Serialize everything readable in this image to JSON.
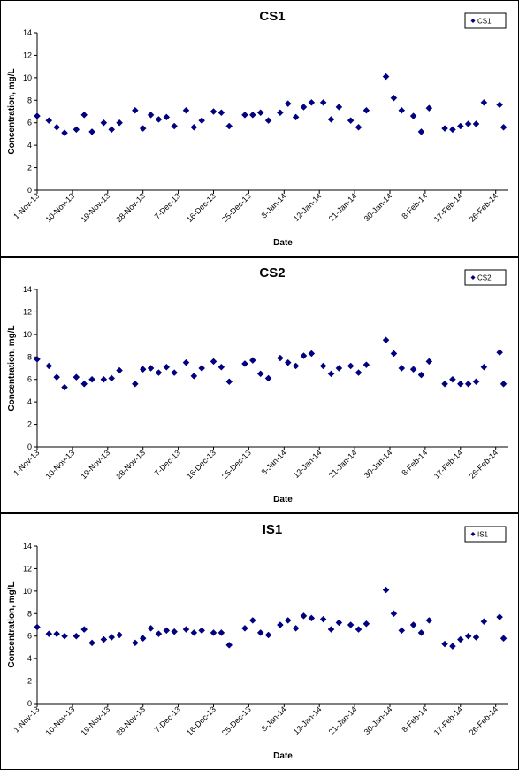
{
  "chart_data": [
    {
      "type": "scatter",
      "title": "CS1",
      "xlabel": "Date",
      "ylabel": "Concentration, mg/L",
      "ylim": [
        0,
        14
      ],
      "yticks": [
        0,
        2,
        4,
        6,
        8,
        10,
        12,
        14
      ],
      "xlim": [
        "2013-11-01",
        "2014-03-01"
      ],
      "xtick_labels": [
        "1-Nov-13",
        "10-Nov-13",
        "19-Nov-13",
        "28-Nov-13",
        "7-Dec-13",
        "16-Dec-13",
        "25-Dec-13",
        "3-Jan-14",
        "12-Jan-14",
        "21-Jan-14",
        "30-Jan-14",
        "8-Feb-14",
        "17-Feb-14",
        "26-Feb-14"
      ],
      "grid": false,
      "legend": {
        "position": "top-right",
        "entries": [
          "CS1"
        ]
      },
      "marker": "diamond",
      "color": "#000080",
      "series": [
        {
          "name": "CS1",
          "x": [
            "2013-11-01",
            "2013-11-04",
            "2013-11-06",
            "2013-11-08",
            "2013-11-11",
            "2013-11-13",
            "2013-11-15",
            "2013-11-18",
            "2013-11-20",
            "2013-11-22",
            "2013-11-26",
            "2013-11-28",
            "2013-11-30",
            "2013-12-02",
            "2013-12-04",
            "2013-12-06",
            "2013-12-09",
            "2013-12-11",
            "2013-12-13",
            "2013-12-16",
            "2013-12-18",
            "2013-12-20",
            "2013-12-24",
            "2013-12-26",
            "2013-12-28",
            "2013-12-30",
            "2014-01-02",
            "2014-01-04",
            "2014-01-06",
            "2014-01-08",
            "2014-01-10",
            "2014-01-13",
            "2014-01-15",
            "2014-01-17",
            "2014-01-20",
            "2014-01-22",
            "2014-01-24",
            "2014-01-29",
            "2014-01-31",
            "2014-02-02",
            "2014-02-05",
            "2014-02-07",
            "2014-02-09",
            "2014-02-13",
            "2014-02-15",
            "2014-02-17",
            "2014-02-19",
            "2014-02-21",
            "2014-02-23",
            "2014-02-27",
            "2014-02-28"
          ],
          "y": [
            6.6,
            6.2,
            5.6,
            5.1,
            5.4,
            6.7,
            5.2,
            6.0,
            5.4,
            6.0,
            7.1,
            5.5,
            6.7,
            6.3,
            6.5,
            5.7,
            7.1,
            5.6,
            6.2,
            7.0,
            6.9,
            5.7,
            6.7,
            6.7,
            6.9,
            6.2,
            6.9,
            7.7,
            6.5,
            7.4,
            7.8,
            7.8,
            6.3,
            7.4,
            6.2,
            5.6,
            7.1,
            10.1,
            8.2,
            7.1,
            6.6,
            5.2,
            7.3,
            5.5,
            5.4,
            5.7,
            5.9,
            5.9,
            7.8,
            7.6,
            5.6
          ]
        }
      ]
    },
    {
      "type": "scatter",
      "title": "CS2",
      "xlabel": "Date",
      "ylabel": "Concentration, mg/L",
      "ylim": [
        0,
        14
      ],
      "yticks": [
        0,
        2,
        4,
        6,
        8,
        10,
        12,
        14
      ],
      "xlim": [
        "2013-11-01",
        "2014-03-01"
      ],
      "xtick_labels": [
        "1-Nov-13",
        "10-Nov-13",
        "19-Nov-13",
        "28-Nov-13",
        "7-Dec-13",
        "16-Dec-13",
        "25-Dec-13",
        "3-Jan-14",
        "12-Jan-14",
        "21-Jan-14",
        "30-Jan-14",
        "8-Feb-14",
        "17-Feb-14",
        "26-Feb-14"
      ],
      "grid": false,
      "legend": {
        "position": "top-right",
        "entries": [
          "CS2"
        ]
      },
      "marker": "diamond",
      "color": "#000080",
      "series": [
        {
          "name": "CS2",
          "x": [
            "2013-11-01",
            "2013-11-04",
            "2013-11-06",
            "2013-11-08",
            "2013-11-11",
            "2013-11-13",
            "2013-11-15",
            "2013-11-18",
            "2013-11-20",
            "2013-11-22",
            "2013-11-26",
            "2013-11-28",
            "2013-11-30",
            "2013-12-02",
            "2013-12-04",
            "2013-12-06",
            "2013-12-09",
            "2013-12-11",
            "2013-12-13",
            "2013-12-16",
            "2013-12-18",
            "2013-12-20",
            "2013-12-24",
            "2013-12-26",
            "2013-12-28",
            "2013-12-30",
            "2014-01-02",
            "2014-01-04",
            "2014-01-06",
            "2014-01-08",
            "2014-01-10",
            "2014-01-13",
            "2014-01-15",
            "2014-01-17",
            "2014-01-20",
            "2014-01-22",
            "2014-01-24",
            "2014-01-29",
            "2014-01-31",
            "2014-02-02",
            "2014-02-05",
            "2014-02-07",
            "2014-02-09",
            "2014-02-13",
            "2014-02-15",
            "2014-02-17",
            "2014-02-19",
            "2014-02-21",
            "2014-02-23",
            "2014-02-27",
            "2014-02-28"
          ],
          "y": [
            7.8,
            7.2,
            6.2,
            5.3,
            6.2,
            5.6,
            6.0,
            6.0,
            6.1,
            6.8,
            5.6,
            6.9,
            7.0,
            6.6,
            7.1,
            6.6,
            7.5,
            6.3,
            7.0,
            7.6,
            7.1,
            5.8,
            7.4,
            7.7,
            6.5,
            6.1,
            7.9,
            7.5,
            7.2,
            8.1,
            8.3,
            7.2,
            6.5,
            7.0,
            7.2,
            6.6,
            7.3,
            9.5,
            8.3,
            7.0,
            6.9,
            6.4,
            7.6,
            5.6,
            6.0,
            5.6,
            5.6,
            5.8,
            7.1,
            8.4,
            5.6
          ]
        }
      ]
    },
    {
      "type": "scatter",
      "title": "IS1",
      "xlabel": "Date",
      "ylabel": "Concentration, mg/L",
      "ylim": [
        0,
        14
      ],
      "yticks": [
        0,
        2,
        4,
        6,
        8,
        10,
        12,
        14
      ],
      "xlim": [
        "2013-11-01",
        "2014-03-01"
      ],
      "xtick_labels": [
        "1-Nov-13",
        "10-Nov-13",
        "19-Nov-13",
        "28-Nov-13",
        "7-Dec-13",
        "16-Dec-13",
        "25-Dec-13",
        "3-Jan-14",
        "12-Jan-14",
        "21-Jan-14",
        "30-Jan-14",
        "8-Feb-14",
        "17-Feb-14",
        "26-Feb-14"
      ],
      "grid": false,
      "legend": {
        "position": "top-right",
        "entries": [
          "IS1"
        ]
      },
      "marker": "diamond",
      "color": "#000080",
      "series": [
        {
          "name": "IS1",
          "x": [
            "2013-11-01",
            "2013-11-04",
            "2013-11-06",
            "2013-11-08",
            "2013-11-11",
            "2013-11-13",
            "2013-11-15",
            "2013-11-18",
            "2013-11-20",
            "2013-11-22",
            "2013-11-26",
            "2013-11-28",
            "2013-11-30",
            "2013-12-02",
            "2013-12-04",
            "2013-12-06",
            "2013-12-09",
            "2013-12-11",
            "2013-12-13",
            "2013-12-16",
            "2013-12-18",
            "2013-12-20",
            "2013-12-24",
            "2013-12-26",
            "2013-12-28",
            "2013-12-30",
            "2014-01-02",
            "2014-01-04",
            "2014-01-06",
            "2014-01-08",
            "2014-01-10",
            "2014-01-13",
            "2014-01-15",
            "2014-01-17",
            "2014-01-20",
            "2014-01-22",
            "2014-01-24",
            "2014-01-29",
            "2014-01-31",
            "2014-02-02",
            "2014-02-05",
            "2014-02-07",
            "2014-02-09",
            "2014-02-13",
            "2014-02-15",
            "2014-02-17",
            "2014-02-19",
            "2014-02-21",
            "2014-02-23",
            "2014-02-27",
            "2014-02-28"
          ],
          "y": [
            6.8,
            6.2,
            6.2,
            6.0,
            6.0,
            6.6,
            5.4,
            5.7,
            5.9,
            6.1,
            5.4,
            5.8,
            6.7,
            6.2,
            6.5,
            6.4,
            6.6,
            6.3,
            6.5,
            6.3,
            6.3,
            5.2,
            6.7,
            7.4,
            6.3,
            6.1,
            7.0,
            7.4,
            6.7,
            7.8,
            7.6,
            7.5,
            6.6,
            7.2,
            7.0,
            6.6,
            7.1,
            10.1,
            8.0,
            6.5,
            7.0,
            6.3,
            7.4,
            5.3,
            5.1,
            5.7,
            6.0,
            5.9,
            7.3,
            7.7,
            5.8
          ]
        }
      ]
    }
  ]
}
